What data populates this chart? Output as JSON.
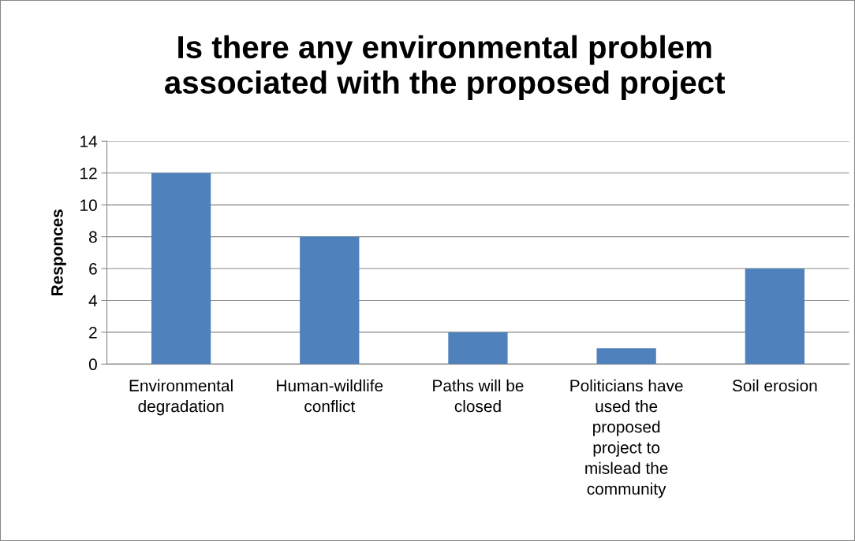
{
  "chart_data": {
    "type": "bar",
    "title": "Is there any environmental problem\nassociated with the proposed project",
    "ylabel": "Responces",
    "categories": [
      "Environmental\ndegradation",
      "Human-wildlife\nconflict",
      "Paths will be\nclosed",
      "Politicians have\nused the\nproposed\nproject to\nmislead the\ncommunity",
      "Soil erosion"
    ],
    "values": [
      12,
      8,
      2,
      1,
      6
    ],
    "color": "#4f81bd",
    "ylim": [
      0,
      14
    ],
    "yticks": [
      0,
      2,
      4,
      6,
      8,
      10,
      12,
      14
    ],
    "grid": "y",
    "legend": false
  }
}
